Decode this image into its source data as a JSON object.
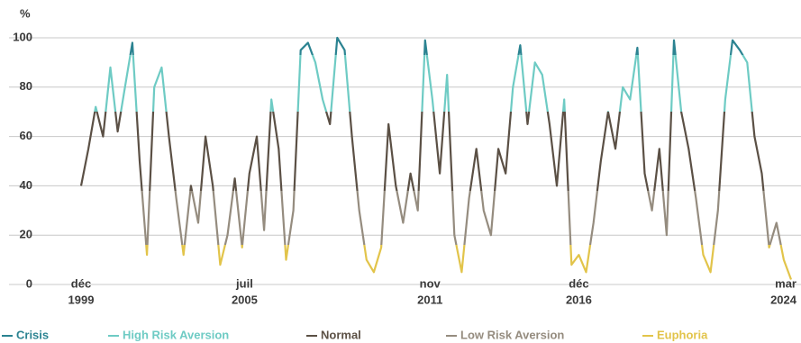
{
  "chart_data": {
    "type": "line",
    "y_unit": "%",
    "x": [
      "1999-12",
      "2000-03",
      "2000-06",
      "2000-09",
      "2000-12",
      "2001-03",
      "2001-06",
      "2001-09",
      "2001-12",
      "2002-03",
      "2002-06",
      "2002-09",
      "2002-12",
      "2003-03",
      "2003-06",
      "2003-09",
      "2003-12",
      "2004-03",
      "2004-06",
      "2004-09",
      "2004-12",
      "2005-03",
      "2005-06",
      "2005-09",
      "2005-12",
      "2006-03",
      "2006-06",
      "2006-09",
      "2006-12",
      "2007-03",
      "2007-06",
      "2007-09",
      "2007-12",
      "2008-03",
      "2008-06",
      "2008-09",
      "2008-12",
      "2009-03",
      "2009-06",
      "2009-09",
      "2009-12",
      "2010-03",
      "2010-06",
      "2010-09",
      "2010-12",
      "2011-03",
      "2011-06",
      "2011-09",
      "2011-12",
      "2012-03",
      "2012-06",
      "2012-09",
      "2012-12",
      "2013-03",
      "2013-06",
      "2013-09",
      "2013-12",
      "2014-03",
      "2014-06",
      "2014-09",
      "2014-12",
      "2015-03",
      "2015-06",
      "2015-09",
      "2015-12",
      "2016-03",
      "2016-06",
      "2016-09",
      "2016-12",
      "2017-03",
      "2017-06",
      "2017-09",
      "2017-12",
      "2018-03",
      "2018-06",
      "2018-09",
      "2018-12",
      "2019-03",
      "2019-06",
      "2019-09",
      "2019-12",
      "2020-03",
      "2020-06",
      "2020-09",
      "2020-12",
      "2021-03",
      "2021-06",
      "2021-09",
      "2021-12",
      "2022-03",
      "2022-06",
      "2022-09",
      "2022-12",
      "2023-03",
      "2023-06",
      "2023-09",
      "2023-12",
      "2024-03"
    ],
    "values": [
      40,
      55,
      72,
      60,
      88,
      62,
      80,
      98,
      50,
      12,
      80,
      88,
      60,
      35,
      12,
      40,
      25,
      60,
      40,
      8,
      20,
      43,
      15,
      45,
      60,
      22,
      75,
      55,
      10,
      30,
      95,
      98,
      90,
      75,
      65,
      100,
      95,
      60,
      30,
      10,
      5,
      15,
      65,
      40,
      25,
      45,
      30,
      99,
      75,
      45,
      85,
      20,
      5,
      35,
      55,
      30,
      20,
      55,
      45,
      80,
      97,
      65,
      90,
      85,
      65,
      40,
      75,
      8,
      12,
      5,
      25,
      50,
      70,
      55,
      80,
      75,
      96,
      45,
      30,
      55,
      20,
      99,
      70,
      55,
      35,
      12,
      5,
      30,
      75,
      99,
      95,
      90,
      60,
      45,
      15,
      25,
      10,
      2
    ],
    "series": [
      {
        "name": "Crisis",
        "color": "#2b8391",
        "range": [
          93,
          100
        ]
      },
      {
        "name": "High Risk Aversion",
        "color": "#6ecbc4",
        "range": [
          70,
          93
        ]
      },
      {
        "name": "Normal",
        "color": "#5b5045",
        "range": [
          38,
          70
        ]
      },
      {
        "name": "Low Risk Aversion",
        "color": "#958c7f",
        "range": [
          16,
          38
        ]
      },
      {
        "name": "Euphoria",
        "color": "#e2c44a",
        "range": [
          0,
          16
        ]
      }
    ],
    "xlim": [
      "1999-12",
      "2024-03"
    ],
    "xticks": [
      {
        "value": "1999-12",
        "label": [
          "déc",
          "1999"
        ]
      },
      {
        "value": "2005-07",
        "label": [
          "juil",
          "2005"
        ]
      },
      {
        "value": "2011-11",
        "label": [
          "nov",
          "2011"
        ]
      },
      {
        "value": "2016-12",
        "label": [
          "déc",
          "2016"
        ]
      },
      {
        "value": "2024-03",
        "label": [
          "mar",
          "2024"
        ]
      }
    ],
    "ylim": [
      0,
      100
    ],
    "yticks": [
      0,
      20,
      40,
      60,
      80,
      100
    ],
    "grid": true
  }
}
